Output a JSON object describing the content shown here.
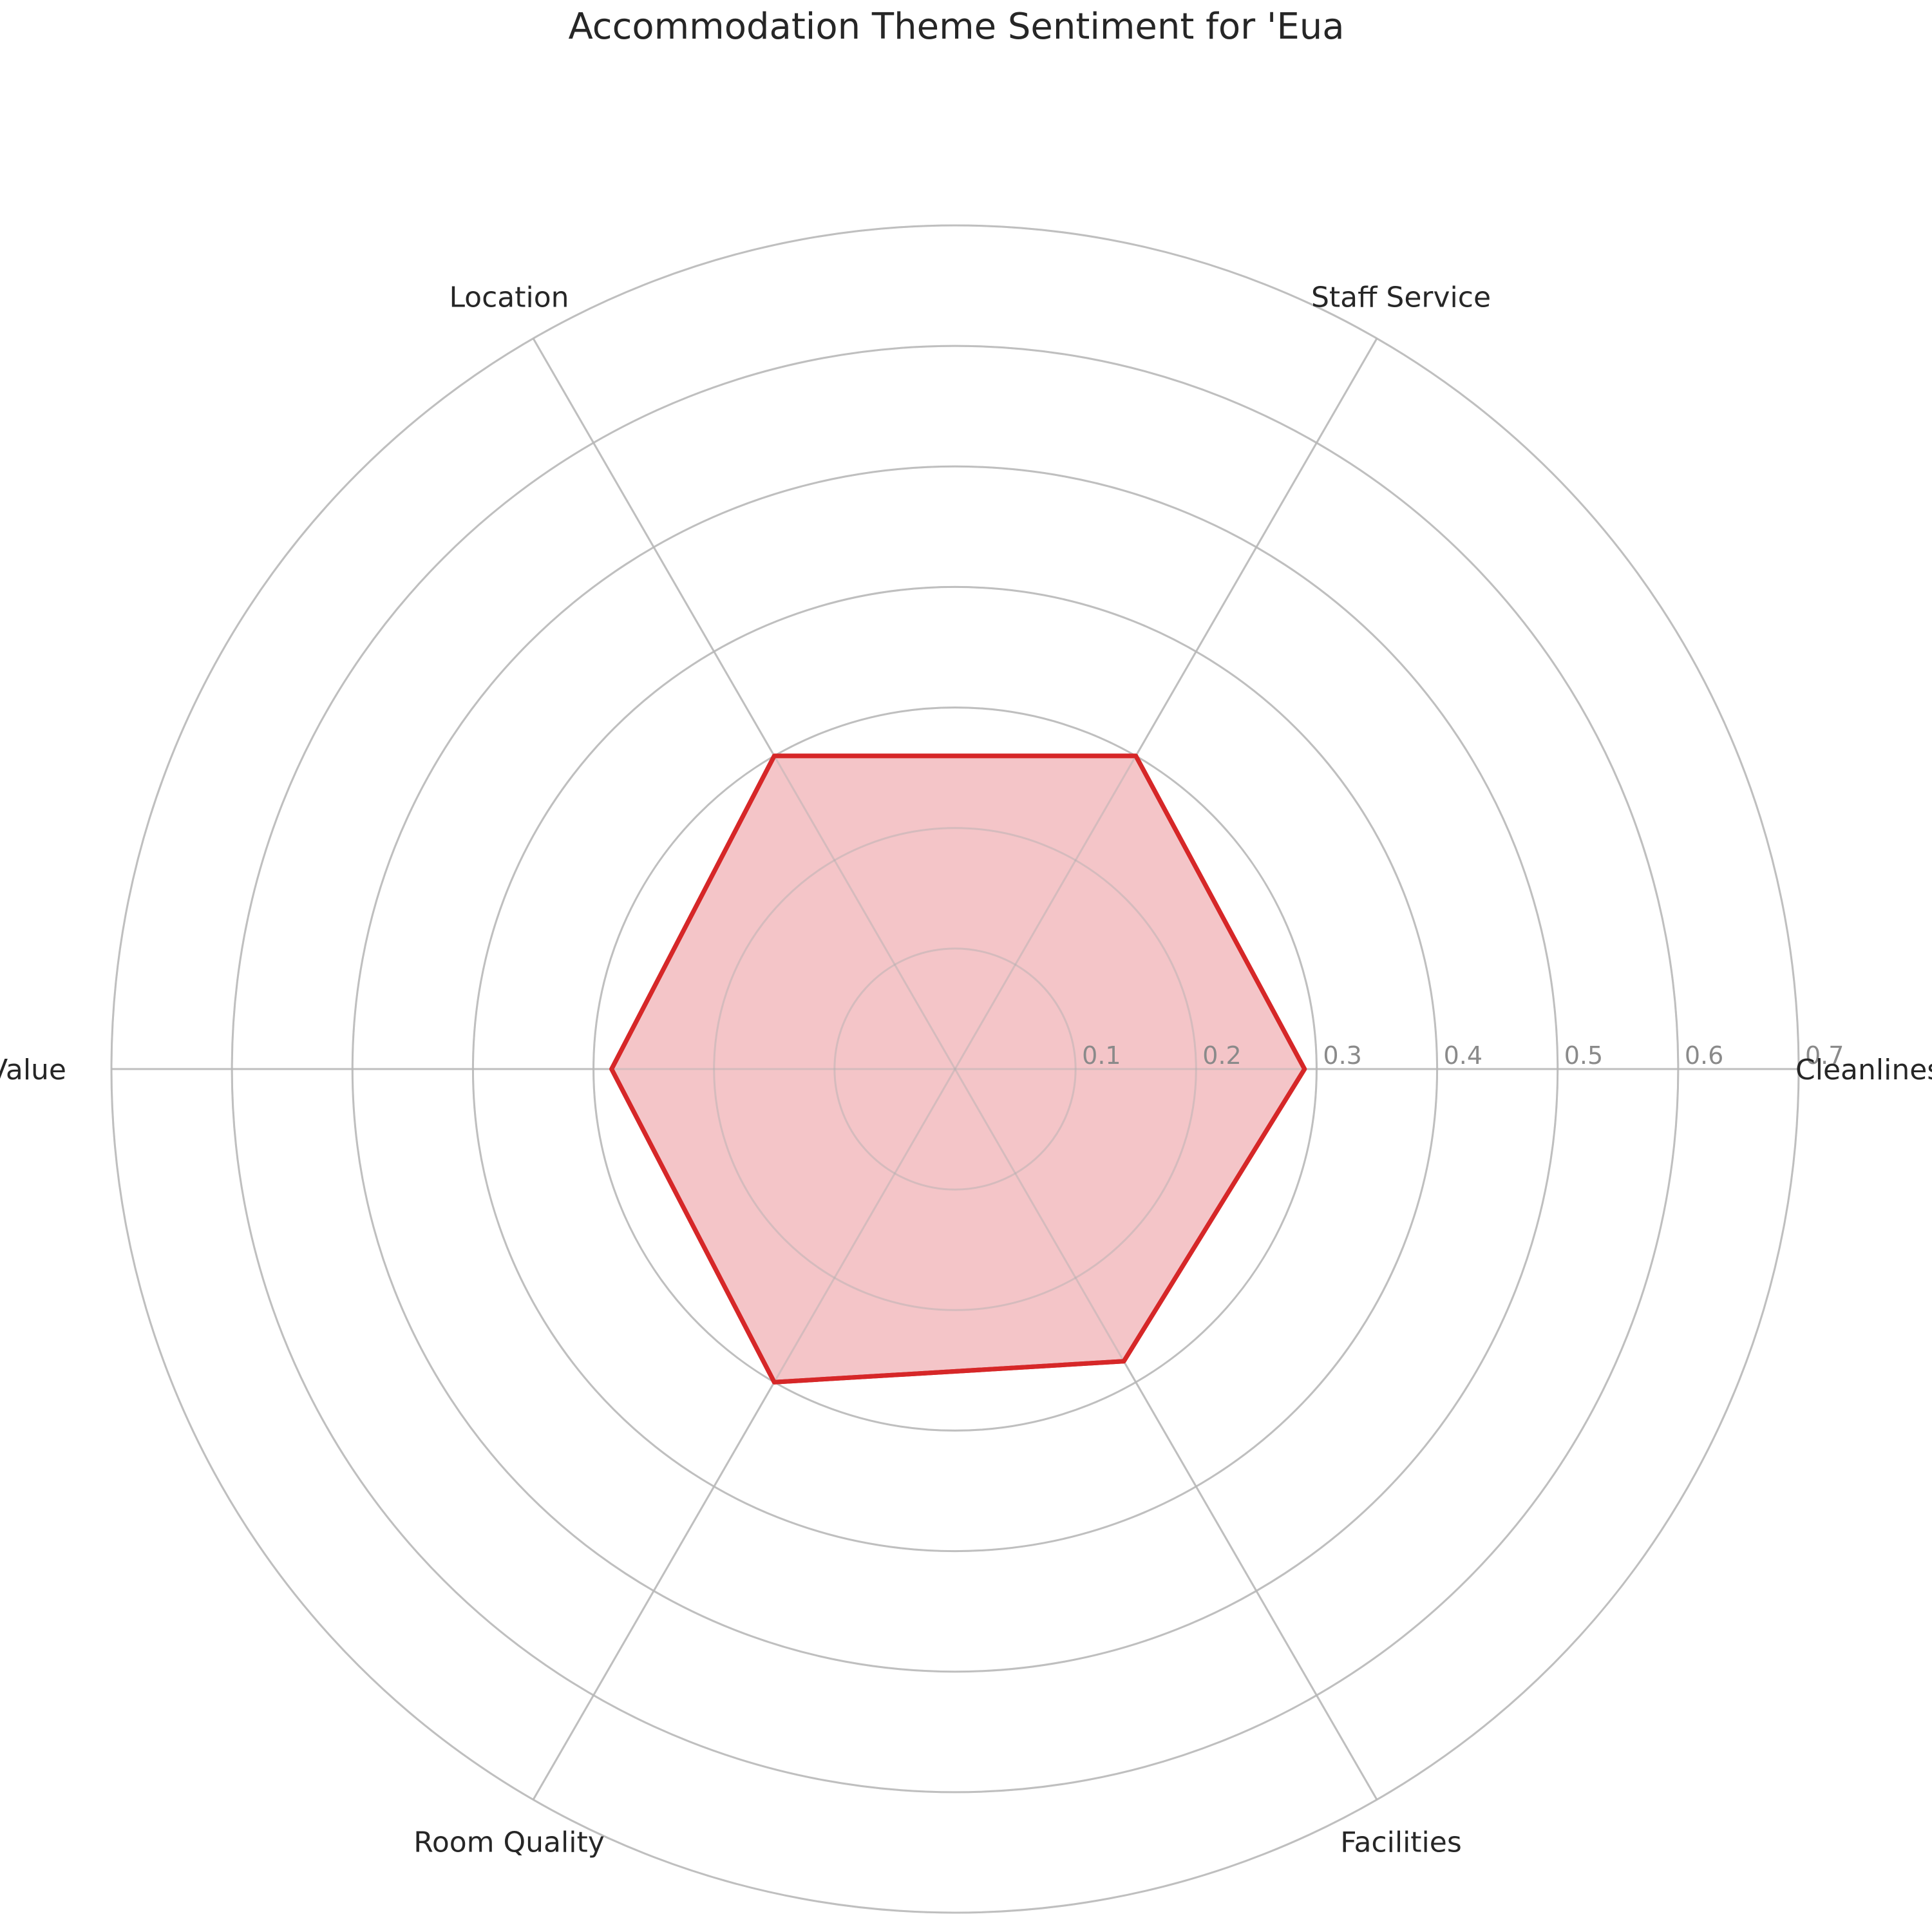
{
  "chart_data": {
    "type": "radar",
    "title": "Accommodation Theme Sentiment for 'Eua",
    "categories": [
      "Cleanliness",
      "Staff Service",
      "Location",
      "Value",
      "Room Quality",
      "Facilities"
    ],
    "series": [
      {
        "values": [
          0.29,
          0.3,
          0.3,
          0.285,
          0.3,
          0.28
        ]
      }
    ],
    "rlim": [
      0,
      0.7
    ],
    "rticks": [
      "0.1",
      "0.2",
      "0.3",
      "0.4",
      "0.5",
      "0.6",
      "0.7"
    ],
    "grid": true,
    "colors": {
      "line": "#d62728",
      "fill": "#f4c5c8",
      "grid": "#cccccc"
    }
  }
}
